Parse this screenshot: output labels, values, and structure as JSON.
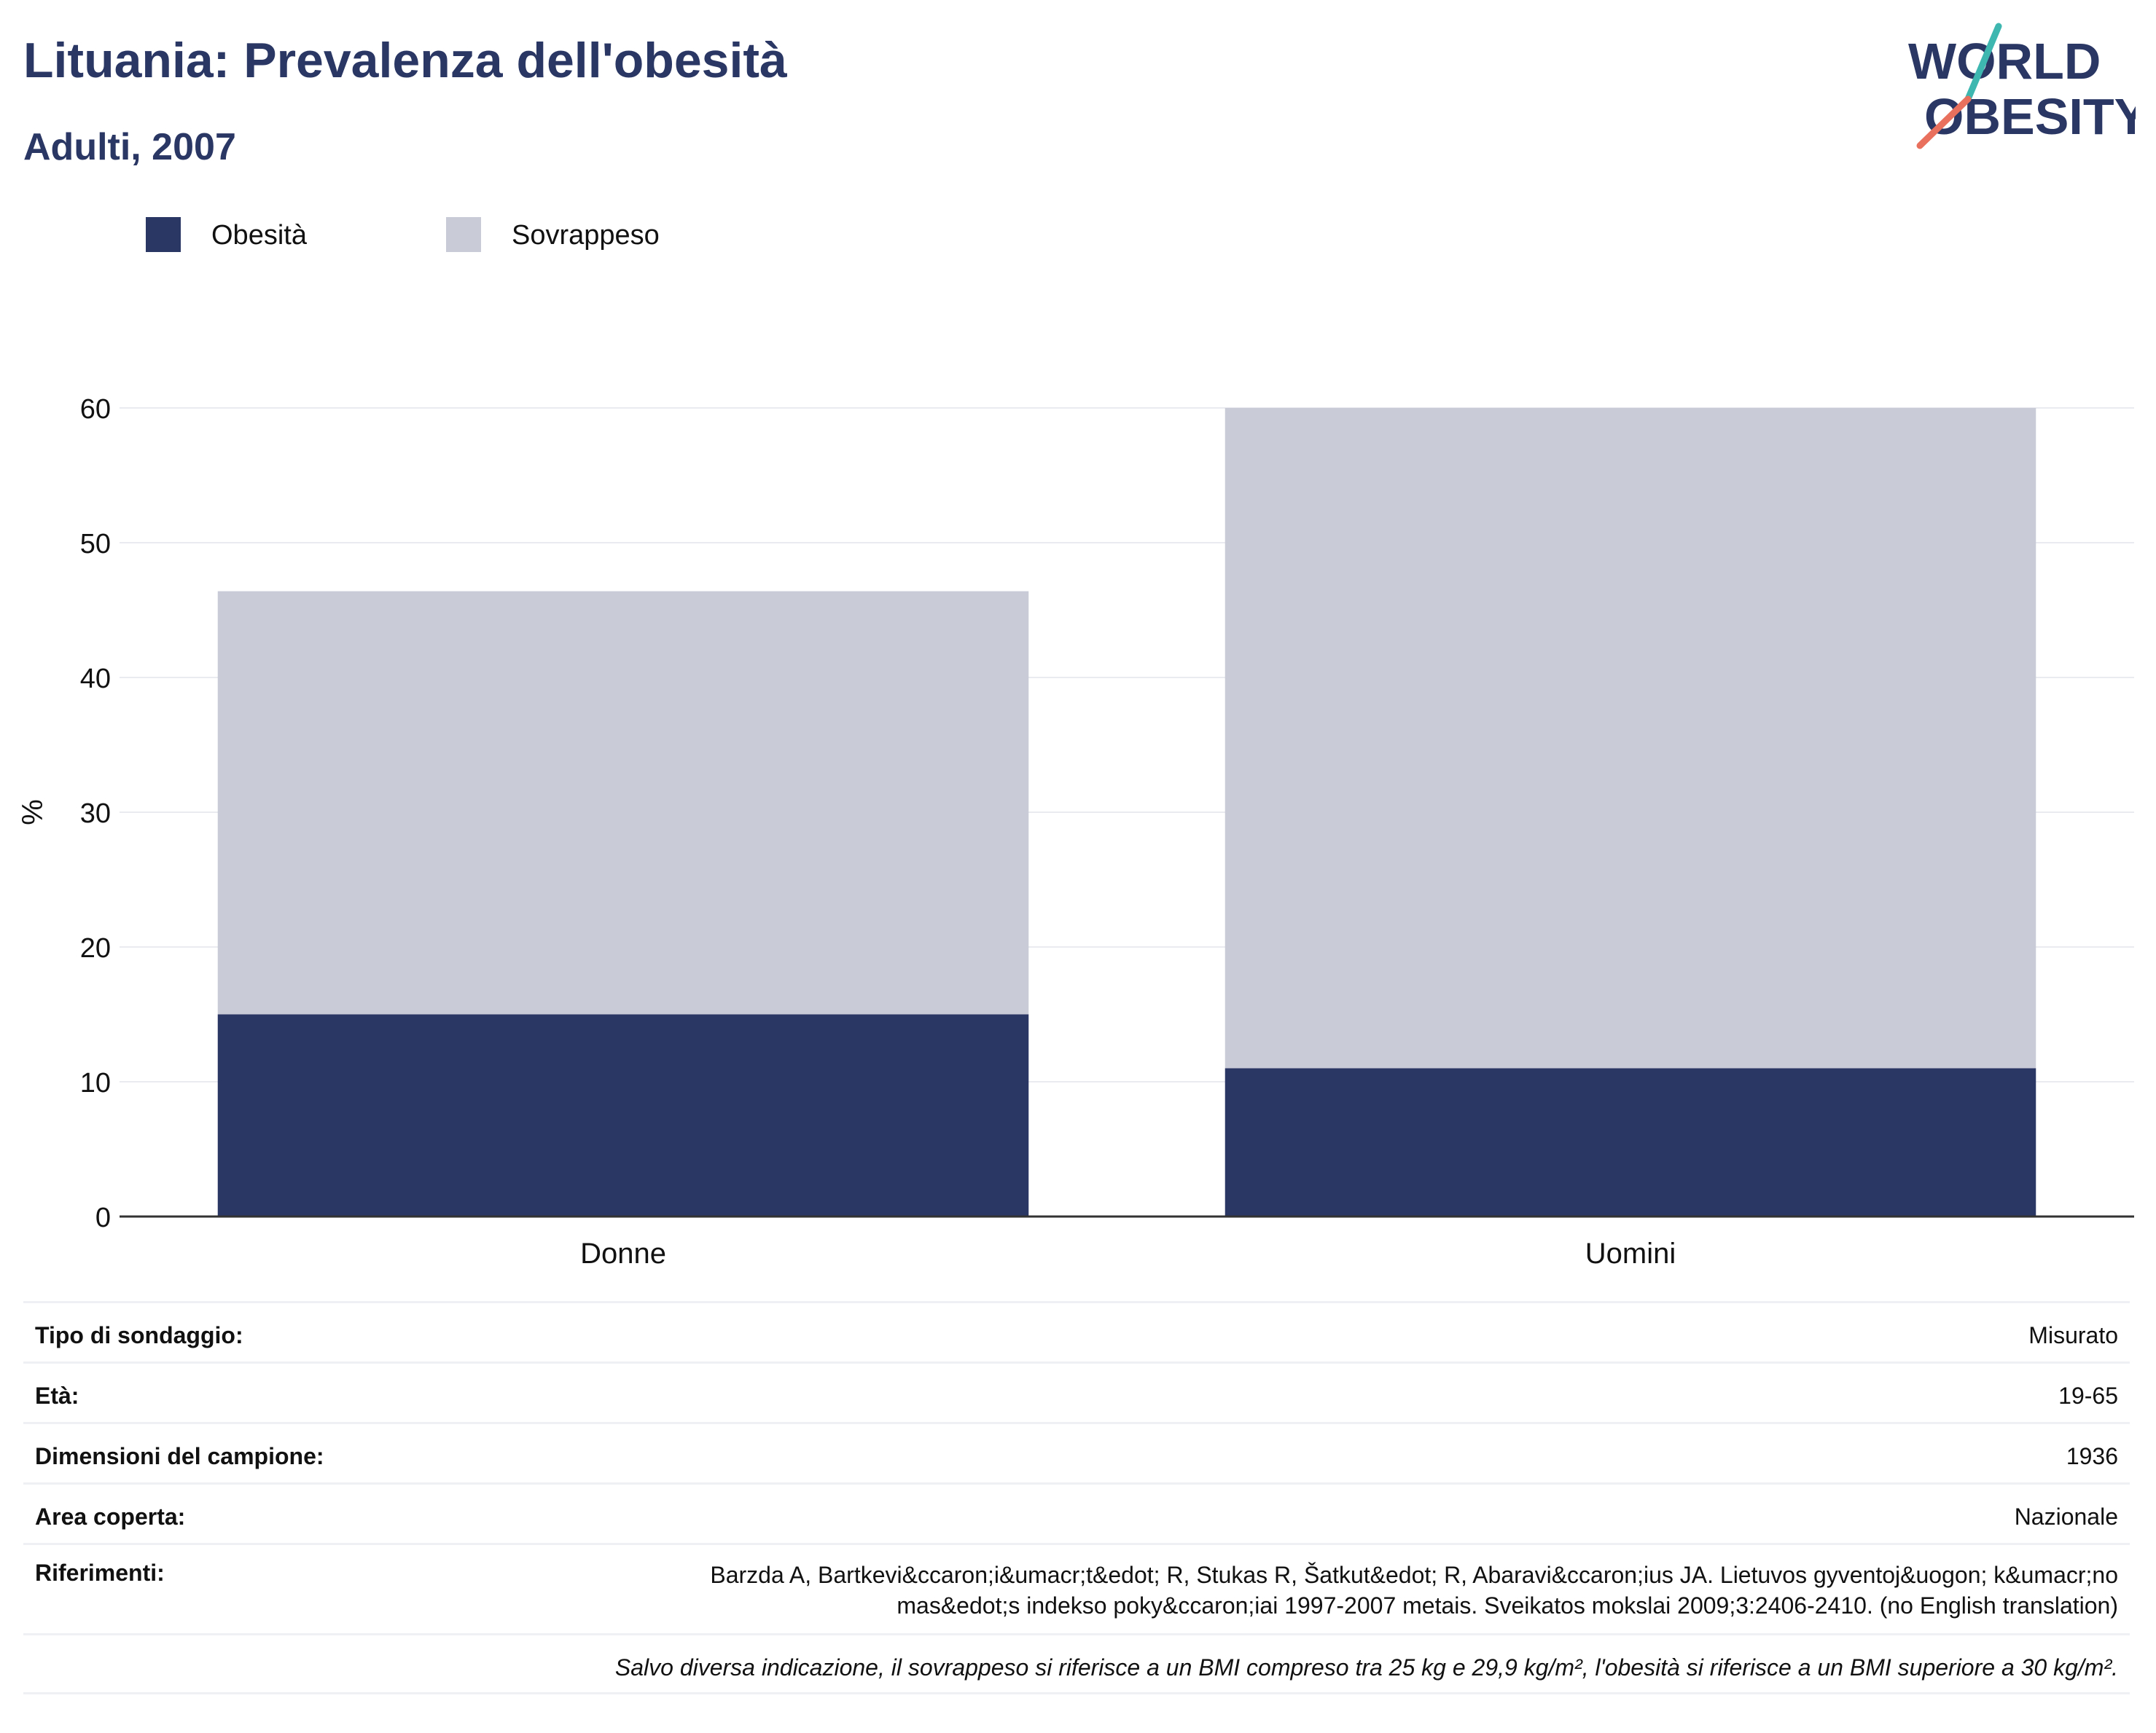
{
  "header": {
    "title": "Lituania: Prevalenza dell'obesità",
    "subtitle": "Adulti, 2007",
    "logo_line1": "WORLD",
    "logo_line2": "OBESITY"
  },
  "legend": [
    {
      "label": "Obesità",
      "color": "#2a3663"
    },
    {
      "label": "Sovrappeso",
      "color": "#c9cbd7"
    }
  ],
  "chart_data": {
    "type": "bar",
    "stacked": true,
    "categories": [
      "Donne",
      "Uomini"
    ],
    "series": [
      {
        "name": "Obesità",
        "values": [
          15,
          11
        ],
        "color": "#2a3663"
      },
      {
        "name": "Sovrappeso",
        "values": [
          31.4,
          49
        ],
        "color": "#c9cbd7"
      }
    ],
    "ylabel": "%",
    "ylim": [
      0,
      60
    ],
    "yticks": [
      0,
      10,
      20,
      30,
      40,
      50,
      60
    ],
    "grid": true,
    "legend_position": "top-left"
  },
  "info": {
    "survey_type": {
      "label": "Tipo di sondaggio:",
      "value": "Misurato"
    },
    "age": {
      "label": "Età:",
      "value": "19-65"
    },
    "sample_size": {
      "label": "Dimensioni del campione:",
      "value": "1936"
    },
    "area": {
      "label": "Area coperta:",
      "value": "Nazionale"
    },
    "references": {
      "label": "Riferimenti:",
      "value": "Barzda A, Bartkevi&ccaron;i&umacr;t&edot; R, Stukas R, Šatkut&edot; R, Abaravi&ccaron;ius JA. Lietuvos gyventoj&uogon; k&umacr;no mas&edot;s indekso poky&ccaron;iai 1997-2007 metais. Sveikatos mokslai 2009;3:2406-2410. (no English translation)"
    },
    "note": "Salvo diversa indicazione, il sovrappeso si riferisce a un BMI compreso tra 25 kg e 29,9 kg/m², l'obesità si riferisce a un BMI superiore a 30 kg/m²."
  }
}
